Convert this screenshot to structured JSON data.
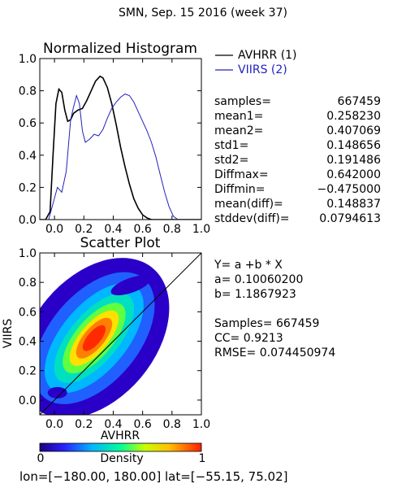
{
  "page": {
    "title": "SMN,  Sep. 15 2016 (week 37)",
    "footer": "lon=[−180.00, 180.00] lat=[−55.15, 75.02]"
  },
  "chart_data": [
    {
      "type": "line",
      "title": "Normalized Histogram",
      "xlim": [
        -0.1,
        1.0
      ],
      "ylim": [
        0.0,
        1.0
      ],
      "xticks": [
        "0.0",
        "0.2",
        "0.4",
        "0.6",
        "0.8",
        "1.0"
      ],
      "yticks": [
        "0.0",
        "0.2",
        "0.4",
        "0.6",
        "0.8",
        "1.0"
      ],
      "legend_position": "right",
      "series": [
        {
          "name": "AVHRR (1)",
          "color": "#000000",
          "points": [
            [
              -0.1,
              0
            ],
            [
              -0.06,
              0
            ],
            [
              -0.03,
              0.05
            ],
            [
              -0.01,
              0.4
            ],
            [
              0.01,
              0.72
            ],
            [
              0.03,
              0.81
            ],
            [
              0.05,
              0.79
            ],
            [
              0.07,
              0.68
            ],
            [
              0.09,
              0.61
            ],
            [
              0.11,
              0.62
            ],
            [
              0.13,
              0.66
            ],
            [
              0.16,
              0.68
            ],
            [
              0.19,
              0.69
            ],
            [
              0.22,
              0.74
            ],
            [
              0.25,
              0.8
            ],
            [
              0.28,
              0.86
            ],
            [
              0.31,
              0.89
            ],
            [
              0.33,
              0.88
            ],
            [
              0.36,
              0.82
            ],
            [
              0.39,
              0.72
            ],
            [
              0.42,
              0.59
            ],
            [
              0.45,
              0.45
            ],
            [
              0.48,
              0.33
            ],
            [
              0.51,
              0.22
            ],
            [
              0.54,
              0.13
            ],
            [
              0.57,
              0.07
            ],
            [
              0.6,
              0.03
            ],
            [
              0.63,
              0.01
            ],
            [
              0.66,
              0
            ],
            [
              1.0,
              0
            ]
          ]
        },
        {
          "name": "VIIRS (2)",
          "color": "#2222bb",
          "points": [
            [
              -0.1,
              0
            ],
            [
              -0.04,
              0
            ],
            [
              -0.01,
              0.1
            ],
            [
              0.02,
              0.2
            ],
            [
              0.05,
              0.17
            ],
            [
              0.08,
              0.3
            ],
            [
              0.11,
              0.62
            ],
            [
              0.13,
              0.7
            ],
            [
              0.15,
              0.77
            ],
            [
              0.17,
              0.72
            ],
            [
              0.19,
              0.55
            ],
            [
              0.21,
              0.48
            ],
            [
              0.24,
              0.5
            ],
            [
              0.27,
              0.53
            ],
            [
              0.3,
              0.52
            ],
            [
              0.33,
              0.56
            ],
            [
              0.36,
              0.63
            ],
            [
              0.39,
              0.69
            ],
            [
              0.42,
              0.73
            ],
            [
              0.45,
              0.76
            ],
            [
              0.48,
              0.78
            ],
            [
              0.51,
              0.77
            ],
            [
              0.54,
              0.73
            ],
            [
              0.57,
              0.67
            ],
            [
              0.6,
              0.61
            ],
            [
              0.63,
              0.55
            ],
            [
              0.66,
              0.48
            ],
            [
              0.69,
              0.39
            ],
            [
              0.72,
              0.28
            ],
            [
              0.75,
              0.17
            ],
            [
              0.78,
              0.08
            ],
            [
              0.81,
              0.02
            ],
            [
              0.84,
              0
            ],
            [
              1.0,
              0
            ]
          ]
        }
      ]
    },
    {
      "type": "heatmap",
      "title": "Scatter Plot",
      "xlabel": "AVHRR",
      "ylabel": "VIIRS",
      "xlim": [
        -0.1,
        1.0
      ],
      "ylim": [
        -0.1,
        1.0
      ],
      "xticks": [
        "0.0",
        "0.2",
        "0.4",
        "0.6",
        "0.8",
        "1.0"
      ],
      "yticks": [
        "0.0",
        "0.2",
        "0.4",
        "0.6",
        "0.8",
        "1.0"
      ],
      "fit": {
        "a": 0.100602,
        "b": 1.1867923
      },
      "one_to_one_line": true,
      "colorbar": {
        "label": "Density",
        "min_label": "0",
        "max_label": "1"
      }
    }
  ],
  "stats": {
    "histogram": [
      {
        "label": "samples=",
        "value": "667459"
      },
      {
        "label": "mean1=",
        "value": "0.258230"
      },
      {
        "label": "mean2=",
        "value": "0.407069"
      },
      {
        "label": "std1=",
        "value": "0.148656"
      },
      {
        "label": "std2=",
        "value": "0.191486"
      },
      {
        "label": "Diffmax=",
        "value": "0.642000"
      },
      {
        "label": "Diffmin=",
        "value": "−0.475000"
      },
      {
        "label": "mean(diff)=",
        "value": "0.148837"
      },
      {
        "label": "stddev(diff)=",
        "value": "0.0794613"
      }
    ],
    "scatter": [
      "Y= a +b * X",
      "a= 0.10060200",
      "b= 1.1867923",
      "",
      "Samples= 667459",
      "CC=  0.9213",
      "RMSE= 0.074450974"
    ]
  }
}
